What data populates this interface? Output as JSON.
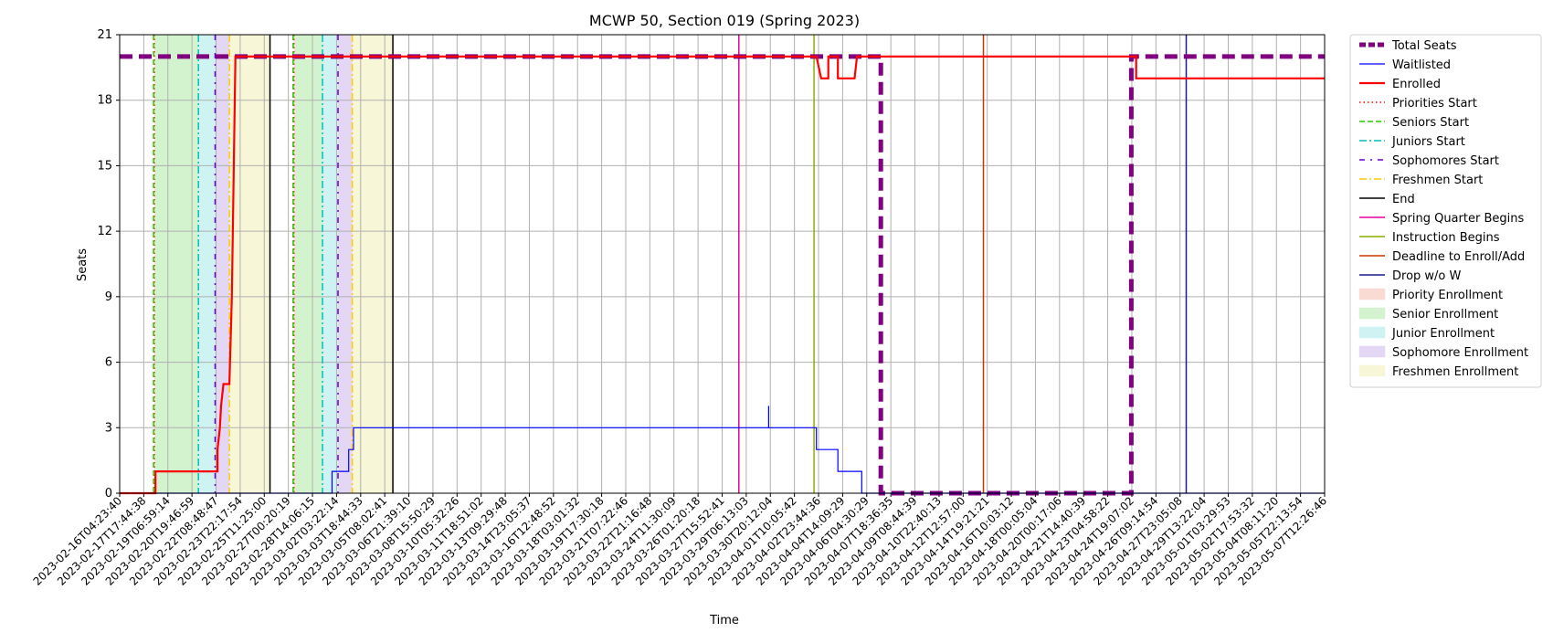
{
  "chart_data": {
    "type": "line",
    "title": "MCWP 50, Section 019 (Spring 2023)",
    "xlabel": "Time",
    "ylabel": "Seats",
    "ylim": [
      0,
      21
    ],
    "yticks": [
      0,
      3,
      6,
      9,
      12,
      15,
      18,
      21
    ],
    "xlim": [
      "2023-02-16T04:23:40",
      "2023-05-08T12:26:46"
    ],
    "x_tick_labels": [
      "2023-02-16T04:23:40",
      "2023-02-17T17:44:38",
      "2023-02-19T06:59:14",
      "2023-02-20T19:46:59",
      "2023-02-22T08:48:47",
      "2023-02-23T22:17:54",
      "2023-02-25T11:25:00",
      "2023-02-27T00:20:19",
      "2023-02-28T14:06:15",
      "2023-03-02T03:22:14",
      "2023-03-03T18:44:33",
      "2023-03-05T08:02:41",
      "2023-03-06T21:39:10",
      "2023-03-08T15:50:29",
      "2023-03-10T05:32:26",
      "2023-03-11T18:51:02",
      "2023-03-13T09:29:48",
      "2023-03-14T23:05:37",
      "2023-03-16T12:48:52",
      "2023-03-18T03:01:32",
      "2023-03-19T17:30:18",
      "2023-03-21T07:22:46",
      "2023-03-22T21:16:48",
      "2023-03-24T11:30:09",
      "2023-03-26T01:20:18",
      "2023-03-27T15:52:41",
      "2023-03-29T06:13:03",
      "2023-03-30T20:12:04",
      "2023-04-01T10:05:42",
      "2023-04-02T23:44:36",
      "2023-04-04T14:09:29",
      "2023-04-06T04:30:29",
      "2023-04-07T18:36:35",
      "2023-04-09T08:44:39",
      "2023-04-10T22:40:13",
      "2023-04-12T12:57:00",
      "2023-04-14T19:21:21",
      "2023-04-16T10:03:12",
      "2023-04-18T00:05:04",
      "2023-04-20T00:17:06",
      "2023-04-21T14:40:39",
      "2023-04-23T04:58:22",
      "2023-04-24T19:07:02",
      "2023-04-26T09:14:54",
      "2023-04-27T23:05:08",
      "2023-04-29T13:22:04",
      "2023-05-01T03:29:53",
      "2023-05-02T17:53:32",
      "2023-05-04T08:11:20",
      "2023-05-05T22:13:54",
      "2023-05-07T12:26:46"
    ],
    "grid": true,
    "legend_position": "outside-right",
    "series": [
      {
        "name": "Total Seats",
        "color": "#800080",
        "style": "dashed-thick",
        "points": [
          [
            0,
            20
          ],
          [
            31.9,
            20
          ],
          [
            31.9,
            0
          ],
          [
            42.4,
            0
          ],
          [
            42.4,
            20
          ],
          [
            50.5,
            20
          ]
        ]
      },
      {
        "name": "Waitlisted",
        "color": "#0000ff",
        "style": "solid-thin",
        "points": [
          [
            0,
            0
          ],
          [
            8.9,
            0
          ],
          [
            8.9,
            1
          ],
          [
            9.6,
            1
          ],
          [
            9.6,
            2
          ],
          [
            9.8,
            2
          ],
          [
            9.8,
            3
          ],
          [
            27.2,
            3
          ],
          [
            27.2,
            4
          ],
          [
            27.2,
            3
          ],
          [
            29.2,
            3
          ],
          [
            29.2,
            2
          ],
          [
            30.1,
            2
          ],
          [
            30.1,
            1
          ],
          [
            31.1,
            1
          ],
          [
            31.1,
            0
          ],
          [
            50.5,
            0
          ]
        ]
      },
      {
        "name": "Enrolled",
        "color": "#ff0000",
        "style": "solid-thick",
        "points": [
          [
            0,
            0
          ],
          [
            1.5,
            0
          ],
          [
            1.5,
            1
          ],
          [
            4.1,
            1
          ],
          [
            4.1,
            2
          ],
          [
            4.2,
            3
          ],
          [
            4.25,
            4
          ],
          [
            4.35,
            5
          ],
          [
            4.6,
            5
          ],
          [
            4.7,
            9
          ],
          [
            4.85,
            20
          ],
          [
            29.2,
            20
          ],
          [
            29.4,
            19
          ],
          [
            29.7,
            19
          ],
          [
            29.7,
            20
          ],
          [
            30.1,
            20
          ],
          [
            30.1,
            19
          ],
          [
            30.8,
            19
          ],
          [
            30.9,
            20
          ],
          [
            42.6,
            20
          ],
          [
            42.6,
            19
          ],
          [
            50.5,
            19
          ]
        ]
      }
    ],
    "vertical_markers": [
      {
        "name": "Priorities Start",
        "color": "#ff0000",
        "style": "dotted",
        "x": [
          1.45,
          7.3
        ]
      },
      {
        "name": "Seniors Start",
        "color": "#22cc00",
        "style": "dashed",
        "x": [
          1.42,
          7.27
        ]
      },
      {
        "name": "Juniors Start",
        "color": "#00bfbf",
        "style": "dashdot",
        "x": [
          3.3,
          8.5
        ]
      },
      {
        "name": "Sophomores Start",
        "color": "#6600cc",
        "style": "loose-dashdot",
        "x": [
          4.0,
          9.15
        ]
      },
      {
        "name": "Freshmen Start",
        "color": "#ffcc00",
        "style": "dashdot",
        "x": [
          4.6,
          9.75
        ]
      },
      {
        "name": "End",
        "color": "#000000",
        "style": "solid",
        "x": [
          6.3,
          11.45
        ]
      },
      {
        "name": "Spring Quarter Begins",
        "color": "#e600a0",
        "style": "solid",
        "x": [
          25.95
        ]
      },
      {
        "name": "Instruction Begins",
        "color": "#88b000",
        "style": "solid",
        "x": [
          29.1
        ]
      },
      {
        "name": "Deadline to Enroll/Add",
        "color": "#cc3300",
        "style": "solid",
        "x": [
          36.2
        ]
      },
      {
        "name": "Drop w/o W",
        "color": "#1a1a8c",
        "style": "solid",
        "x": [
          44.7
        ]
      }
    ],
    "shaded_periods": [
      {
        "name": "Priority Enrollment",
        "color": "#f4b8a8",
        "ranges": [
          [
            1.45,
            1.5
          ],
          [
            7.3,
            7.35
          ]
        ]
      },
      {
        "name": "Senior Enrollment",
        "color": "#a8e8a0",
        "ranges": [
          [
            1.5,
            3.3
          ],
          [
            7.35,
            8.5
          ]
        ]
      },
      {
        "name": "Junior Enrollment",
        "color": "#a0e8e8",
        "ranges": [
          [
            3.3,
            4.0
          ],
          [
            8.5,
            9.15
          ]
        ]
      },
      {
        "name": "Sophomore Enrollment",
        "color": "#c8b0ec",
        "ranges": [
          [
            4.0,
            4.6
          ],
          [
            9.15,
            9.75
          ]
        ]
      },
      {
        "name": "Freshmen Enrollment",
        "color": "#f0f0b0",
        "ranges": [
          [
            4.6,
            6.3
          ],
          [
            9.75,
            11.45
          ]
        ]
      }
    ],
    "legend": [
      {
        "label": "Total Seats",
        "kind": "line",
        "color": "#800080",
        "style": "dashed-thick"
      },
      {
        "label": "Waitlisted",
        "kind": "line",
        "color": "#0000ff",
        "style": "solid-thin"
      },
      {
        "label": "Enrolled",
        "kind": "line",
        "color": "#ff0000",
        "style": "solid-thick"
      },
      {
        "label": "Priorities Start",
        "kind": "line",
        "color": "#ff0000",
        "style": "dotted"
      },
      {
        "label": "Seniors Start",
        "kind": "line",
        "color": "#22cc00",
        "style": "dashed"
      },
      {
        "label": "Juniors Start",
        "kind": "line",
        "color": "#00bfbf",
        "style": "dashdot"
      },
      {
        "label": "Sophomores Start",
        "kind": "line",
        "color": "#6600cc",
        "style": "loose-dashdot"
      },
      {
        "label": "Freshmen Start",
        "kind": "line",
        "color": "#ffcc00",
        "style": "dashdot"
      },
      {
        "label": "End",
        "kind": "line",
        "color": "#000000",
        "style": "solid"
      },
      {
        "label": "Spring Quarter Begins",
        "kind": "line",
        "color": "#e600a0",
        "style": "solid"
      },
      {
        "label": "Instruction Begins",
        "kind": "line",
        "color": "#88b000",
        "style": "solid"
      },
      {
        "label": "Deadline to Enroll/Add",
        "kind": "line",
        "color": "#cc3300",
        "style": "solid"
      },
      {
        "label": "Drop w/o W",
        "kind": "line",
        "color": "#1a1a8c",
        "style": "solid"
      },
      {
        "label": "Priority Enrollment",
        "kind": "patch",
        "color": "#f4b8a8"
      },
      {
        "label": "Senior Enrollment",
        "kind": "patch",
        "color": "#a8e8a0"
      },
      {
        "label": "Junior Enrollment",
        "kind": "patch",
        "color": "#a0e8e8"
      },
      {
        "label": "Sophomore Enrollment",
        "kind": "patch",
        "color": "#c8b0ec"
      },
      {
        "label": "Freshmen Enrollment",
        "kind": "patch",
        "color": "#f0f0b0"
      }
    ]
  }
}
